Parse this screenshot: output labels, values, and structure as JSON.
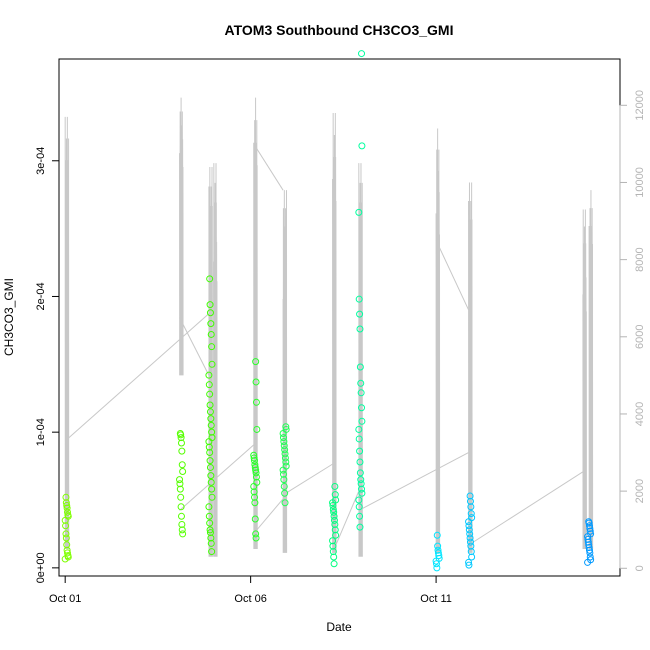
{
  "chart_data": {
    "type": "scatter",
    "title": "ATOM3 Southbound CH3CO3_GMI",
    "xlabel": "Date",
    "ylabel": "CH3CO3_GMI",
    "xlim": [
      "2017-09-30T20:00",
      "2017-10-15T23:00"
    ],
    "ylim": [
      -6e-06,
      0.000375
    ],
    "y2lim": [
      -200,
      13200
    ],
    "x_ticks": [
      {
        "date": "2017-10-01T00:00",
        "label": "Oct 01"
      },
      {
        "date": "2017-10-06T00:00",
        "label": "Oct 06"
      },
      {
        "date": "2017-10-11T00:00",
        "label": "Oct 11"
      }
    ],
    "y_ticks": [
      {
        "value": 0.0,
        "label": "0e+00"
      },
      {
        "value": 0.0001,
        "label": "1e-04"
      },
      {
        "value": 0.0002,
        "label": "2e-04"
      },
      {
        "value": 0.0003,
        "label": "3e-04"
      }
    ],
    "y2_ticks": [
      {
        "value": 0,
        "label": "0"
      },
      {
        "value": 2000,
        "label": "2000"
      },
      {
        "value": 4000,
        "label": "4000"
      },
      {
        "value": 6000,
        "label": "6000"
      },
      {
        "value": 8000,
        "label": "8000"
      },
      {
        "value": 10000,
        "label": "10000"
      },
      {
        "value": 12000,
        "label": "12000"
      }
    ],
    "grid": false,
    "legend": "none",
    "colors": {
      "altitude_line": "#c8c8c8",
      "axis": "#000000",
      "secondary_axis": "#b4b4b4"
    },
    "point_series": [
      {
        "time": "2017-10-01T00:00",
        "color": "#7fff00",
        "values": [
          6.5e-06,
          8e-06,
          9e-06,
          1.1e-05,
          1.3e-05,
          1.7e-05,
          2.2e-05,
          2.5e-05,
          3.1e-05,
          3.5e-05,
          3.8e-05,
          3.9e-05,
          4.1e-05,
          4.4e-05,
          4.6e-05,
          4.8e-05,
          5.2e-05
        ]
      },
      {
        "time": "2017-10-04T02:00",
        "color": "#55ff00",
        "values": [
          2.5e-05,
          2.8e-05,
          3.2e-05,
          3.8e-05,
          4.5e-05,
          5.2e-05,
          5.8e-05,
          6.2e-05,
          6.5e-05,
          7.1e-05,
          7.6e-05,
          8.6e-05,
          9.2e-05,
          9.6e-05,
          9.8e-05,
          9.9e-05
        ]
      },
      {
        "time": "2017-10-04T21:00",
        "color": "#3fff00",
        "values": [
          1.2e-05,
          1.8e-05,
          2.2e-05,
          2.6e-05,
          2.8e-05,
          3.3e-05,
          3.8e-05,
          4.5e-05,
          5.2e-05,
          5.8e-05,
          6.3e-05,
          6.8e-05,
          7.4e-05,
          7.9e-05,
          8.5e-05,
          8.9e-05,
          9.3e-05,
          9.6e-05,
          0.0001,
          0.000105,
          0.00011,
          0.000115,
          0.00012,
          0.000128,
          0.000135,
          0.000142,
          0.00015,
          0.000163,
          0.000172,
          0.00018,
          0.000188,
          0.000194,
          0.000213
        ]
      },
      {
        "time": "2017-10-06T02:00",
        "color": "#2aff2a",
        "values": [
          2.2e-05,
          2.5e-05,
          3.6e-05,
          4.8e-05,
          5.2e-05,
          5.6e-05,
          6e-05,
          6.3e-05,
          6.7e-05,
          7e-05,
          7.2e-05,
          7.4e-05,
          7.6e-05,
          7.9e-05,
          8.1e-05,
          8.3e-05,
          0.000102,
          0.000122,
          0.000137,
          0.000152
        ]
      },
      {
        "time": "2017-10-06T21:00",
        "color": "#22ff55",
        "values": [
          4.8e-05,
          5.5e-05,
          6e-05,
          6.5e-05,
          6.9e-05,
          7.2e-05,
          7.5e-05,
          7.8e-05,
          8.1e-05,
          8.4e-05,
          8.7e-05,
          9e-05,
          9.3e-05,
          9.6e-05,
          9.9e-05,
          0.000102,
          0.000104
        ]
      },
      {
        "time": "2017-10-08T05:00",
        "color": "#00ff80",
        "values": [
          3e-06,
          8e-06,
          1.2e-05,
          1.6e-05,
          2e-05,
          2.4e-05,
          2.8e-05,
          3.2e-05,
          3.5e-05,
          3.8e-05,
          4.1e-05,
          4.3e-05,
          4.6e-05,
          4.8e-05,
          5e-05,
          5.4e-05,
          6e-05
        ]
      },
      {
        "time": "2017-10-08T22:00",
        "color": "#00ff9f",
        "values": [
          3e-05,
          3.8e-05,
          4.5e-05,
          5e-05,
          5.5e-05,
          5.8e-05,
          6.2e-05,
          6.5e-05,
          7e-05,
          7.8e-05,
          8.6e-05,
          9.5e-05,
          0.000102,
          0.000108,
          0.000118,
          0.000129,
          0.000136,
          0.000148,
          0.000176,
          0.000187,
          0.000198,
          0.000262,
          0.000311,
          0.000379
        ]
      },
      {
        "time": "2017-10-11T00:00",
        "color": "#00e5ff",
        "values": [
          0.0,
          3e-06,
          5e-06,
          7e-06,
          9e-06,
          1.1e-05,
          1.3e-05,
          1.6e-05,
          2.4e-05
        ]
      },
      {
        "time": "2017-10-11T21:00",
        "color": "#00c8ff",
        "values": [
          2e-06,
          4e-06,
          8e-06,
          1.2e-05,
          1.6e-05,
          1.9e-05,
          2.2e-05,
          2.5e-05,
          2.8e-05,
          3.1e-05,
          3.4e-05,
          3.7e-05,
          4e-05,
          4.5e-05,
          4.9e-05,
          5.3e-05
        ]
      },
      {
        "time": "2017-10-15T02:00",
        "color": "#0099ff",
        "values": [
          4e-06,
          6e-06,
          8e-06,
          1.1e-05,
          1.3e-05,
          1.5e-05,
          1.7e-05,
          1.9e-05,
          2.1e-05,
          2.3e-05,
          2.5e-05,
          2.7e-05,
          2.9e-05,
          3.1e-05,
          3.3e-05,
          3.4e-05
        ]
      }
    ],
    "altitude_spikes": [
      {
        "time": "2017-10-01T00:00",
        "low": 500,
        "high": 11700
      },
      {
        "time": "2017-10-04T02:00",
        "low": 5000,
        "high": 12200
      },
      {
        "time": "2017-10-04T21:00",
        "low": 300,
        "high": 10400
      },
      {
        "time": "2017-10-05T00:00",
        "low": 300,
        "high": 10500
      },
      {
        "time": "2017-10-06T02:00",
        "low": 500,
        "high": 12200
      },
      {
        "time": "2017-10-06T21:00",
        "low": 400,
        "high": 9800
      },
      {
        "time": "2017-10-08T05:00",
        "low": 400,
        "high": 11800
      },
      {
        "time": "2017-10-08T22:00",
        "low": 300,
        "high": 10500
      },
      {
        "time": "2017-10-11T00:00",
        "low": 400,
        "high": 11400
      },
      {
        "time": "2017-10-11T21:00",
        "low": 400,
        "high": 10000
      },
      {
        "time": "2017-10-14T23:00",
        "low": 500,
        "high": 9300
      },
      {
        "time": "2017-10-15T03:00",
        "low": 500,
        "high": 9800
      }
    ],
    "altitude_connectors": [
      {
        "from_time": "2017-10-01T00:00",
        "from_alt": 3300,
        "to_time": "2017-10-04T21:00",
        "to_alt": 6600
      },
      {
        "from_time": "2017-10-04T02:00",
        "from_alt": 1500,
        "to_time": "2017-10-06T02:00",
        "to_alt": 3200
      },
      {
        "from_time": "2017-10-04T02:00",
        "from_alt": 6500,
        "to_time": "2017-10-04T21:00",
        "to_alt": 5000
      },
      {
        "from_time": "2017-10-06T02:00",
        "from_alt": 900,
        "to_time": "2017-10-06T21:00",
        "to_alt": 1800
      },
      {
        "from_time": "2017-10-06T02:00",
        "from_alt": 11000,
        "to_time": "2017-10-06T21:00",
        "to_alt": 9800
      },
      {
        "from_time": "2017-10-06T21:00",
        "from_alt": 1900,
        "to_time": "2017-10-08T05:00",
        "to_alt": 2700
      },
      {
        "from_time": "2017-10-08T05:00",
        "from_alt": 400,
        "to_time": "2017-10-08T22:00",
        "to_alt": 2000
      },
      {
        "from_time": "2017-10-08T22:00",
        "from_alt": 1500,
        "to_time": "2017-10-11T21:00",
        "to_alt": 3000
      },
      {
        "from_time": "2017-10-11T00:00",
        "from_alt": 8500,
        "to_time": "2017-10-11T21:00",
        "to_alt": 6700
      },
      {
        "from_time": "2017-10-11T21:00",
        "from_alt": 600,
        "to_time": "2017-10-14T23:00",
        "to_alt": 2500
      }
    ]
  }
}
